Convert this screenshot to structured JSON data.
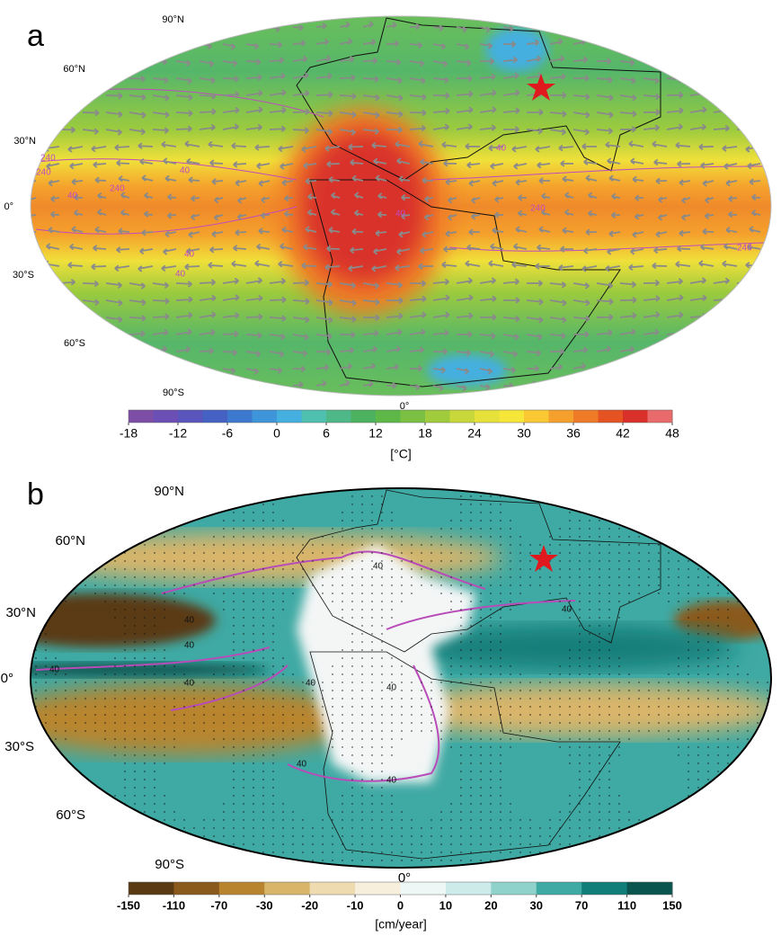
{
  "panels": [
    {
      "label": "a",
      "lat_labels": [
        "90°N",
        "60°N",
        "30°N",
        "0°",
        "30°S",
        "60°S",
        "90°S"
      ],
      "lon_label": "0°",
      "contour_labels": [
        "240",
        "240",
        "40",
        "40",
        "240",
        "40",
        "40",
        "240",
        "240",
        "40",
        "40"
      ],
      "colorbar": {
        "lim": [
          -18,
          48
        ],
        "ticks": [
          -18,
          -12,
          -6,
          0,
          6,
          12,
          18,
          24,
          30,
          36,
          42,
          48
        ],
        "colors": [
          "#7d4ea6",
          "#6b4fb5",
          "#5a55bd",
          "#4561c4",
          "#3d79cf",
          "#3f95da",
          "#45afe0",
          "#4fbfb0",
          "#4fb889",
          "#4cb25f",
          "#5db847",
          "#7cc043",
          "#a0cb3c",
          "#c8d83a",
          "#e6e03a",
          "#f7e63a",
          "#f9c832",
          "#f5a02c",
          "#ef7a27",
          "#e65322",
          "#d9302a",
          "#e86a6a"
        ],
        "unit": "[°C]"
      }
    },
    {
      "label": "b",
      "lat_labels": [
        "90°N",
        "60°N",
        "30°N",
        "0°",
        "30°S",
        "60°S",
        "90°S"
      ],
      "lon_label": "0°",
      "contour_labels": [
        "40",
        "40",
        "40",
        "40",
        "40",
        "40",
        "40",
        "40",
        "40",
        "40"
      ],
      "colorbar": {
        "ticks": [
          -150,
          -110,
          -70,
          -30,
          -20,
          -10,
          0,
          10,
          20,
          30,
          70,
          110,
          150
        ],
        "colors": [
          "#5a3a12",
          "#8a5a1c",
          "#b8852e",
          "#d9b56a",
          "#eedcb0",
          "#f7efdc",
          "#eef7f6",
          "#cdebe8",
          "#8fd2cc",
          "#3fa9a3",
          "#127e79",
          "#0a544f"
        ],
        "unit": "[cm/year]"
      }
    }
  ]
}
